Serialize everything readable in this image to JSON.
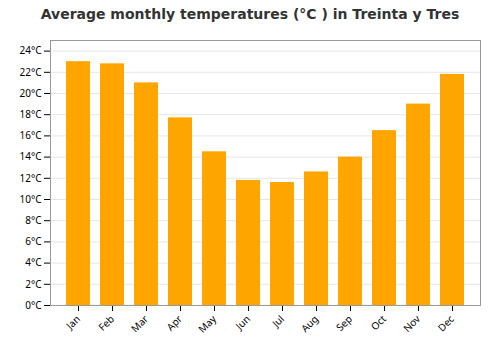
{
  "chart_data": {
    "type": "bar",
    "title": "Average monthly temperatures (°C ) in Treinta y Tres",
    "categories": [
      "Jan",
      "Feb",
      "Mar",
      "Apr",
      "May",
      "Jun",
      "Jul",
      "Aug",
      "Sep",
      "Oct",
      "Nov",
      "Dec"
    ],
    "values": [
      23.0,
      22.8,
      21.0,
      17.7,
      14.5,
      11.8,
      11.6,
      12.6,
      14.0,
      16.5,
      19.0,
      21.8
    ],
    "color": "#FFA500",
    "ylim": [
      0,
      25
    ],
    "yticks": [
      {
        "value": 0,
        "label": "0°C"
      },
      {
        "value": 2,
        "label": "2°C"
      },
      {
        "value": 4,
        "label": "4°C"
      },
      {
        "value": 6,
        "label": "6°C"
      },
      {
        "value": 8,
        "label": "8°C"
      },
      {
        "value": 10,
        "label": "10°C"
      },
      {
        "value": 12,
        "label": "12°C"
      },
      {
        "value": 14,
        "label": "14°C"
      },
      {
        "value": 16,
        "label": "16°C"
      },
      {
        "value": 18,
        "label": "18°C"
      },
      {
        "value": 20,
        "label": "20°C"
      },
      {
        "value": 22,
        "label": "22°C"
      },
      {
        "value": 24,
        "label": "24°C"
      }
    ],
    "grid": true
  }
}
